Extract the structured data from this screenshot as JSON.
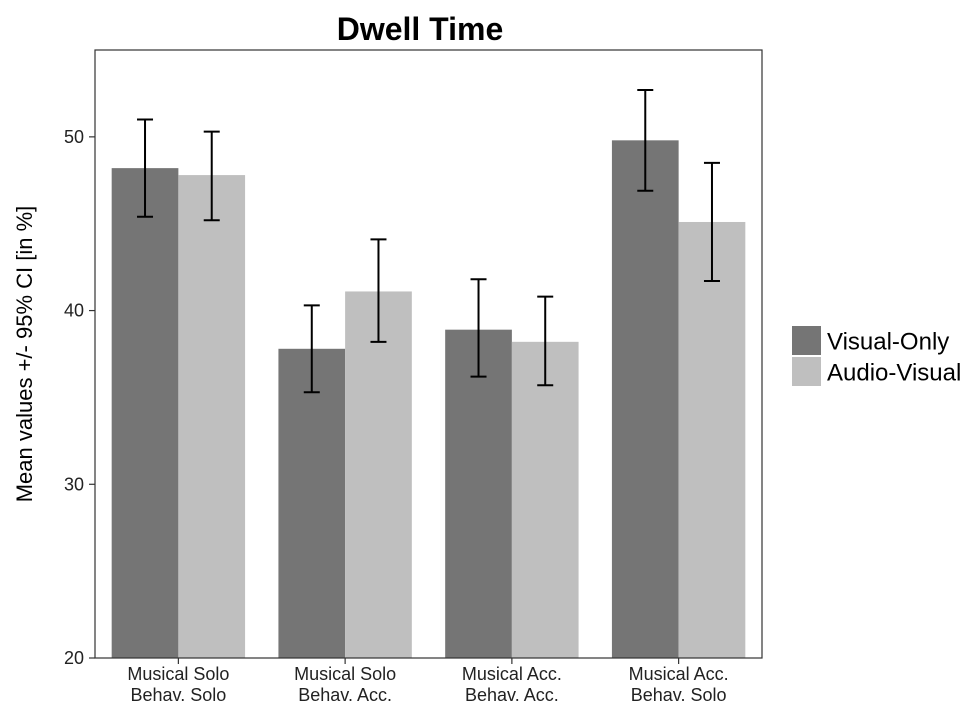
{
  "chart_data": {
    "type": "bar",
    "title": "Dwell Time",
    "xlabel": "",
    "ylabel": "Mean values +/- 95% CI [in %]",
    "ylim": [
      20,
      55
    ],
    "yticks": [
      "20",
      "30",
      "40",
      "50"
    ],
    "categories": [
      [
        "Musical Solo",
        "Behav. Solo"
      ],
      [
        "Musical Solo",
        "Behav. Acc."
      ],
      [
        "Musical Acc.",
        "Behav. Acc."
      ],
      [
        "Musical Acc.",
        "Behav. Solo"
      ]
    ],
    "series": [
      {
        "name": "Visual-Only",
        "color": "#757575",
        "values": [
          48.2,
          37.8,
          38.9,
          49.8
        ],
        "ci_low": [
          45.4,
          35.3,
          36.2,
          46.9
        ],
        "ci_high": [
          51.0,
          40.3,
          41.8,
          52.7
        ]
      },
      {
        "name": "Audio-Visual",
        "color": "#bfbfbf",
        "values": [
          47.8,
          41.1,
          38.2,
          45.1
        ],
        "ci_low": [
          45.2,
          38.2,
          35.7,
          41.7
        ],
        "ci_high": [
          50.3,
          44.1,
          40.8,
          48.5
        ]
      }
    ],
    "legend_position": "right",
    "grid": false
  }
}
